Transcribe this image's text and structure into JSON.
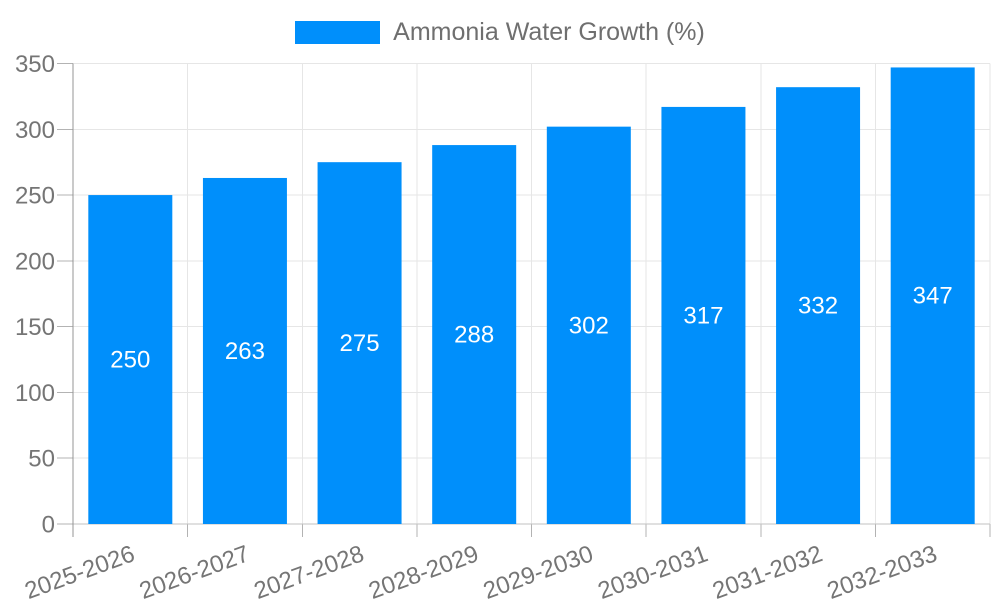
{
  "legend": {
    "label": "Ammonia Water Growth (%)"
  },
  "chart_data": {
    "type": "bar",
    "title": "",
    "legend_position": "top",
    "categories": [
      "2025-2026",
      "2026-2027",
      "2027-2028",
      "2028-2029",
      "2029-2030",
      "2030-2031",
      "2031-2032",
      "2032-2033"
    ],
    "series": [
      {
        "name": "Ammonia Water Growth (%)",
        "values": [
          250,
          263,
          275,
          288,
          302,
          317,
          332,
          347
        ]
      }
    ],
    "value_labels_shown": true,
    "xlabel": "",
    "ylabel": "",
    "ylim": [
      0,
      350
    ],
    "y_ticks": [
      0,
      50,
      100,
      150,
      200,
      250,
      300,
      350
    ],
    "grid": true,
    "x_label_rotation_deg": -20,
    "colors": {
      "bar": "#008FFB",
      "grid": "#e6e6e6",
      "axis_line": "#949494",
      "tick": "#b3b3b3",
      "baseline": "#c2c2c2",
      "axis_text": "#757575",
      "value_text": "#ffffff"
    }
  }
}
